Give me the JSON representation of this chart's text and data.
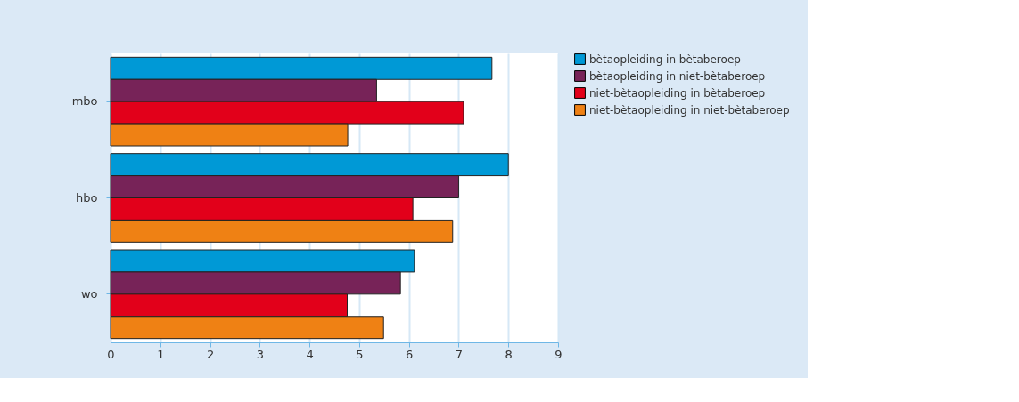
{
  "chart_data": {
    "type": "bar",
    "orientation": "horizontal",
    "categories": [
      "mbo",
      "hbo",
      "wo"
    ],
    "series": [
      {
        "name": "bètaopleiding in bètaberoep",
        "color": "#0099d6",
        "values": [
          7.67,
          8.0,
          6.11
        ]
      },
      {
        "name": "bètaopleiding in niet-bètaberoep",
        "color": "#772358",
        "values": [
          5.35,
          7.0,
          5.83
        ]
      },
      {
        "name": "niet-bètaopleiding in bètaberoep",
        "color": "#e2001a",
        "values": [
          7.1,
          6.08,
          4.76
        ]
      },
      {
        "name": "niet-bètaopleiding in niet-bètaberoep",
        "color": "#ef8114",
        "values": [
          4.77,
          6.88,
          5.49
        ]
      }
    ],
    "xlim": [
      0,
      9
    ],
    "xticks": [
      0,
      1,
      2,
      3,
      4,
      5,
      6,
      7,
      8,
      9
    ],
    "grid": "x",
    "legend": "top right"
  }
}
